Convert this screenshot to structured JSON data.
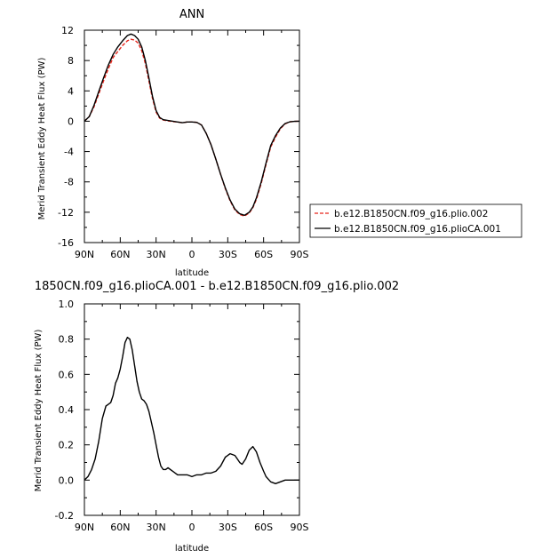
{
  "chart_data": [
    {
      "type": "line",
      "title": "ANN",
      "xlabel": "latitude",
      "ylabel": "Merid Transient Eddy Heat Flux (PW)",
      "xlim": [
        90,
        -90
      ],
      "ylim": [
        -16,
        12
      ],
      "x_ticks": [
        90,
        60,
        30,
        0,
        -30,
        -60,
        -90
      ],
      "x_tick_labels": [
        "90N",
        "60N",
        "30N",
        "0",
        "30S",
        "60S",
        "90S"
      ],
      "y_ticks": [
        -16,
        -12,
        -8,
        -4,
        0,
        4,
        8,
        12
      ],
      "y_tick_labels": [
        "-16",
        "-12",
        "-8",
        "-4",
        "0",
        "4",
        "8",
        "12"
      ],
      "legend_position": "right",
      "series": [
        {
          "name": "b.e12.B1850CN.f09_g16.plio.002",
          "color": "#e8251a",
          "dash": "dashed",
          "x": [
            90,
            86,
            82,
            78,
            74,
            70,
            66,
            62,
            58,
            54,
            51,
            48,
            45,
            42,
            39,
            36,
            33,
            30,
            27,
            24,
            20,
            16,
            12,
            8,
            4,
            0,
            -4,
            -8,
            -12,
            -16,
            -20,
            -24,
            -28,
            -32,
            -36,
            -40,
            -44,
            -48,
            -51,
            -54,
            -58,
            -62,
            -66,
            -70,
            -74,
            -78,
            -82,
            -86,
            -90
          ],
          "y": [
            0,
            0.6,
            1.9,
            3.6,
            5.3,
            6.9,
            8.4,
            9.2,
            10.0,
            10.6,
            10.8,
            10.7,
            10.3,
            9.3,
            7.6,
            5.3,
            3.0,
            1.2,
            0.4,
            0.15,
            0.05,
            -0.05,
            -0.1,
            -0.2,
            -0.1,
            -0.1,
            -0.15,
            -0.5,
            -1.6,
            -3.1,
            -5.0,
            -7.0,
            -8.9,
            -10.5,
            -11.7,
            -12.3,
            -12.5,
            -12.1,
            -11.4,
            -10.3,
            -8.2,
            -5.7,
            -3.4,
            -2.1,
            -1.0,
            -0.35,
            -0.08,
            -0.02,
            0
          ]
        },
        {
          "name": "b.e12.B1850CN.f09_g16.plioCA.001",
          "color": "#000000",
          "dash": "solid",
          "x": [
            90,
            86,
            82,
            78,
            74,
            70,
            66,
            62,
            58,
            54,
            51,
            48,
            45,
            42,
            39,
            36,
            33,
            30,
            27,
            24,
            20,
            16,
            12,
            8,
            4,
            0,
            -4,
            -8,
            -12,
            -16,
            -20,
            -24,
            -28,
            -32,
            -36,
            -40,
            -44,
            -48,
            -51,
            -54,
            -58,
            -62,
            -66,
            -70,
            -74,
            -78,
            -82,
            -86,
            -90
          ],
          "y": [
            0,
            0.6,
            2.1,
            3.9,
            5.7,
            7.4,
            8.8,
            9.8,
            10.6,
            11.3,
            11.5,
            11.3,
            10.8,
            9.8,
            8.0,
            5.7,
            3.3,
            1.4,
            0.5,
            0.2,
            0.1,
            0.0,
            -0.1,
            -0.2,
            -0.1,
            -0.1,
            -0.15,
            -0.5,
            -1.6,
            -3.1,
            -5.0,
            -7.0,
            -8.8,
            -10.4,
            -11.6,
            -12.2,
            -12.4,
            -12.0,
            -11.3,
            -10.1,
            -8.0,
            -5.5,
            -3.2,
            -1.9,
            -0.9,
            -0.3,
            -0.08,
            -0.02,
            0
          ]
        }
      ]
    },
    {
      "type": "line",
      "title": "1850CN.f09_g16.plioCA.001 - b.e12.B1850CN.f09_g16.plio.002",
      "xlabel": "latitude",
      "ylabel": "Merid Transient Eddy Heat Flux (PW)",
      "xlim": [
        90,
        -90
      ],
      "ylim": [
        -0.2,
        1.0
      ],
      "x_ticks": [
        90,
        60,
        30,
        0,
        -30,
        -60,
        -90
      ],
      "x_tick_labels": [
        "90N",
        "60N",
        "30N",
        "0",
        "30S",
        "60S",
        "90S"
      ],
      "y_ticks": [
        -0.2,
        0.0,
        0.2,
        0.4,
        0.6,
        0.8,
        1.0
      ],
      "y_tick_labels": [
        "-0.2",
        "0.0",
        "0.2",
        "0.4",
        "0.6",
        "0.8",
        "1.0"
      ],
      "series": [
        {
          "color": "#000000",
          "dash": "solid",
          "x": [
            90,
            87,
            84,
            81,
            78,
            75,
            72,
            70,
            68,
            66,
            64,
            62,
            60,
            58,
            56,
            54,
            52,
            50,
            48,
            46,
            44,
            42,
            40,
            38,
            36,
            34,
            32,
            30,
            28,
            26,
            24,
            22,
            20,
            16,
            12,
            8,
            4,
            0,
            -4,
            -8,
            -12,
            -16,
            -20,
            -24,
            -28,
            -32,
            -36,
            -38,
            -40,
            -42,
            -45,
            -48,
            -51,
            -54,
            -57,
            -60,
            -62,
            -64,
            -66,
            -70,
            -74,
            -78,
            -82,
            -86,
            -90
          ],
          "y": [
            0,
            0.02,
            0.06,
            0.12,
            0.22,
            0.35,
            0.42,
            0.43,
            0.44,
            0.48,
            0.55,
            0.58,
            0.63,
            0.7,
            0.78,
            0.81,
            0.8,
            0.74,
            0.65,
            0.56,
            0.5,
            0.46,
            0.45,
            0.43,
            0.39,
            0.33,
            0.27,
            0.2,
            0.13,
            0.08,
            0.06,
            0.06,
            0.07,
            0.05,
            0.03,
            0.03,
            0.03,
            0.02,
            0.03,
            0.03,
            0.04,
            0.04,
            0.05,
            0.08,
            0.13,
            0.15,
            0.14,
            0.12,
            0.1,
            0.09,
            0.12,
            0.17,
            0.19,
            0.16,
            0.1,
            0.05,
            0.02,
            0.005,
            -0.01,
            -0.02,
            -0.01,
            0.0,
            0.0,
            0.0,
            0.0
          ]
        }
      ]
    }
  ]
}
